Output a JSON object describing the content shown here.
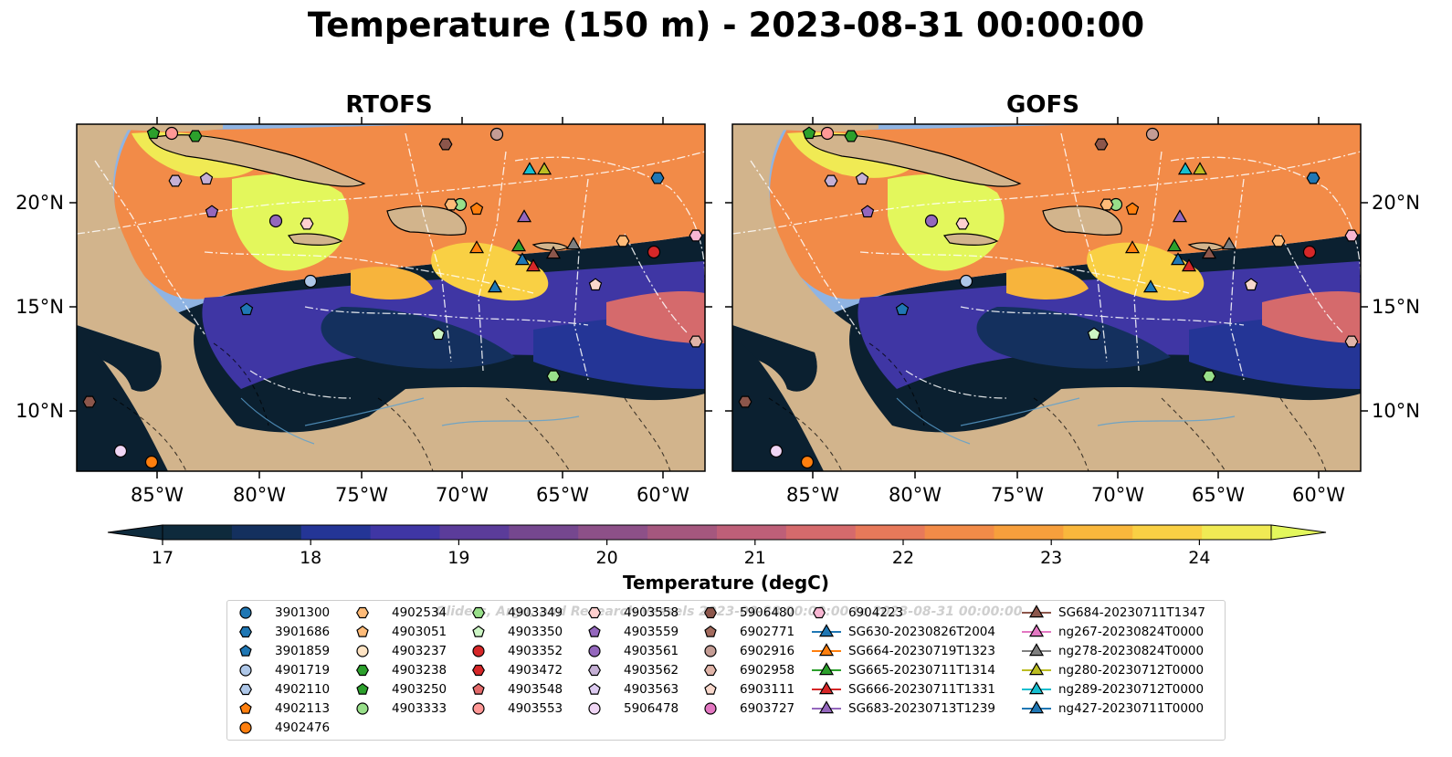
{
  "title": "Temperature (150 m) - 2023-08-31 00:00:00",
  "panels": [
    {
      "title": "RTOFS"
    },
    {
      "title": "GOFS"
    }
  ],
  "map": {
    "lon_ticks": [
      "85°W",
      "80°W",
      "75°W",
      "70°W",
      "65°W",
      "60°W"
    ],
    "lat_ticks": [
      "20°N",
      "15°N",
      "10°N"
    ],
    "land_color": "#d2b48c",
    "shelf_color": "#8fb4e3",
    "deep_color": "#0b2030"
  },
  "colorbar": {
    "label": "Temperature (degC)",
    "ticks": [
      "17",
      "18",
      "19",
      "20",
      "21",
      "22",
      "23",
      "24"
    ],
    "colors": [
      "#0e2a3c",
      "#14305e",
      "#243596",
      "#3f36a4",
      "#5b3c9a",
      "#75478f",
      "#8d5088",
      "#a5577e",
      "#be5f78",
      "#d56a6c",
      "#e7795a",
      "#f28b48",
      "#f79f3c",
      "#f9b73c",
      "#f9d044",
      "#f0ea54",
      "#e3f75c"
    ]
  },
  "legend": {
    "watermark": "Gliders, Argo, and Research Vessels 2023-08-28 00:00:00 to 2023-08-31 00:00:00",
    "columns": [
      [
        {
          "label": "3901300",
          "marker": "circle",
          "color": "#1f77b4"
        },
        {
          "label": "3901686",
          "marker": "hexagon",
          "color": "#1f77b4"
        },
        {
          "label": "3901859",
          "marker": "pentagon",
          "color": "#1f77b4"
        },
        {
          "label": "4901719",
          "marker": "circle",
          "color": "#aec7e8"
        },
        {
          "label": "4902110",
          "marker": "hexagon",
          "color": "#aec7e8"
        },
        {
          "label": "4902113",
          "marker": "pentagon",
          "color": "#ff7f0e"
        },
        {
          "label": "4902476",
          "marker": "circle",
          "color": "#ff7f0e"
        }
      ],
      [
        {
          "label": "4902534",
          "marker": "hexagon",
          "color": "#ffbb78"
        },
        {
          "label": "4903051",
          "marker": "pentagon",
          "color": "#ffbb78"
        },
        {
          "label": "4903237",
          "marker": "circle",
          "color": "#ffe4c4"
        },
        {
          "label": "4903238",
          "marker": "hexagon",
          "color": "#2ca02c"
        },
        {
          "label": "4903250",
          "marker": "pentagon",
          "color": "#2ca02c"
        },
        {
          "label": "4903333",
          "marker": "circle",
          "color": "#98df8a"
        }
      ],
      [
        {
          "label": "4903349",
          "marker": "hexagon",
          "color": "#98df8a"
        },
        {
          "label": "4903350",
          "marker": "pentagon",
          "color": "#ccf5c4"
        },
        {
          "label": "4903352",
          "marker": "circle",
          "color": "#d62728"
        },
        {
          "label": "4903472",
          "marker": "hexagon",
          "color": "#d62728"
        },
        {
          "label": "4903548",
          "marker": "pentagon",
          "color": "#e36a6a"
        },
        {
          "label": "4903553",
          "marker": "circle",
          "color": "#ff9896"
        }
      ],
      [
        {
          "label": "4903558",
          "marker": "hexagon",
          "color": "#ffd0cf"
        },
        {
          "label": "4903559",
          "marker": "pentagon",
          "color": "#9467bd"
        },
        {
          "label": "4903561",
          "marker": "circle",
          "color": "#9467bd"
        },
        {
          "label": "4903562",
          "marker": "hexagon",
          "color": "#c5b0d5"
        },
        {
          "label": "4903563",
          "marker": "pentagon",
          "color": "#dccaf0"
        },
        {
          "label": "5906478",
          "marker": "circle",
          "color": "#f0d6f5"
        }
      ],
      [
        {
          "label": "5906480",
          "marker": "hexagon",
          "color": "#8c564b"
        },
        {
          "label": "6902771",
          "marker": "pentagon",
          "color": "#a36b5e"
        },
        {
          "label": "6902916",
          "marker": "circle",
          "color": "#c49c94"
        },
        {
          "label": "6902958",
          "marker": "hexagon",
          "color": "#e0b4a8"
        },
        {
          "label": "6903111",
          "marker": "pentagon",
          "color": "#f8d8cc"
        },
        {
          "label": "6903727",
          "marker": "circle",
          "color": "#e377c2"
        }
      ],
      [
        {
          "label": "6904223",
          "marker": "hexagon",
          "color": "#f7b6d2"
        },
        {
          "label": "SG630-20230826T2004",
          "marker": "triangle",
          "color": "#1f77b4"
        },
        {
          "label": "SG664-20230719T1323",
          "marker": "triangle",
          "color": "#ff7f0e"
        },
        {
          "label": "SG665-20230711T1314",
          "marker": "triangle",
          "color": "#2ca02c"
        },
        {
          "label": "SG666-20230711T1331",
          "marker": "triangle",
          "color": "#d62728"
        },
        {
          "label": "SG683-20230713T1239",
          "marker": "triangle",
          "color": "#9467bd"
        }
      ],
      [
        {
          "label": "SG684-20230711T1347",
          "marker": "triangle",
          "color": "#8c564b"
        },
        {
          "label": "ng267-20230824T0000",
          "marker": "triangle",
          "color": "#e377c2"
        },
        {
          "label": "ng278-20230824T0000",
          "marker": "triangle",
          "color": "#7f7f7f"
        },
        {
          "label": "ng280-20230712T0000",
          "marker": "triangle",
          "color": "#bcbd22"
        },
        {
          "label": "ng289-20230712T0000",
          "marker": "triangle",
          "color": "#17becf"
        },
        {
          "label": "ng427-20230711T0000",
          "marker": "triangle",
          "color": "#1f77b4"
        }
      ]
    ]
  }
}
